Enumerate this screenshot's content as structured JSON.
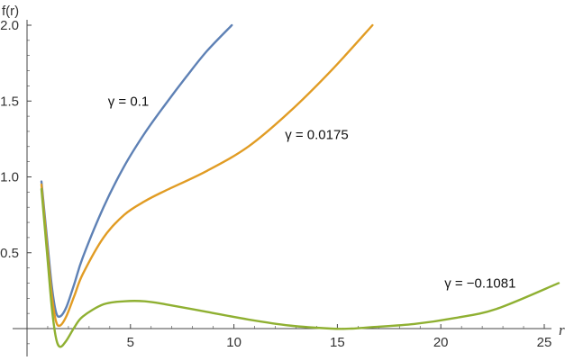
{
  "chart_data": {
    "type": "line",
    "xlabel": "r",
    "ylabel": "f(r)",
    "xlim": [
      -0.5,
      25
    ],
    "ylim": [
      -0.15,
      2.0
    ],
    "x_ticks": [
      5,
      10,
      15,
      20,
      25
    ],
    "y_ticks": [
      0.5,
      1.0,
      1.5,
      2.0
    ],
    "y_tick_labels": [
      "0.5",
      "1.0",
      "1.5",
      "2.0"
    ],
    "grid": false,
    "series": [
      {
        "name": "γ = 0.1",
        "color": "#5e81b5",
        "x": [
          0,
          0.3,
          0.5,
          0.7,
          0.9,
          1.2,
          1.6,
          2,
          3,
          4,
          5,
          6,
          7,
          8,
          9.2
        ],
        "y": [
          0.97,
          0.55,
          0.28,
          0.11,
          0.08,
          0.14,
          0.3,
          0.47,
          0.8,
          1.07,
          1.29,
          1.48,
          1.66,
          1.83,
          2.0
        ]
      },
      {
        "name": "γ = 0.0175",
        "color": "#e19c24",
        "x": [
          0,
          0.3,
          0.5,
          0.7,
          0.9,
          1.2,
          1.6,
          2,
          3,
          4,
          5,
          6,
          8,
          10,
          12,
          14,
          16
        ],
        "y": [
          0.95,
          0.5,
          0.22,
          0.05,
          0.02,
          0.08,
          0.22,
          0.36,
          0.6,
          0.75,
          0.84,
          0.91,
          1.04,
          1.2,
          1.43,
          1.7,
          2.0
        ]
      },
      {
        "name": "γ = −0.1081",
        "color": "#8fb032",
        "x": [
          0,
          0.3,
          0.5,
          0.7,
          0.9,
          1.2,
          1.6,
          2,
          3,
          4,
          5,
          6,
          8,
          10,
          12,
          14,
          15,
          16,
          18,
          20,
          22,
          25
        ],
        "y": [
          0.92,
          0.45,
          0.14,
          -0.06,
          -0.12,
          -0.08,
          0.01,
          0.08,
          0.16,
          0.18,
          0.18,
          0.16,
          0.11,
          0.06,
          0.02,
          0.0,
          0.0,
          0.01,
          0.03,
          0.07,
          0.13,
          0.3
        ]
      }
    ],
    "annotations": [
      {
        "text": "γ = 0.1",
        "x": 4.9,
        "y": 1.5
      },
      {
        "text": "γ = 0.0175",
        "x": 14.0,
        "y": 1.28
      },
      {
        "text": "γ = −0.1081",
        "x": 21.9,
        "y": 0.3
      }
    ]
  }
}
